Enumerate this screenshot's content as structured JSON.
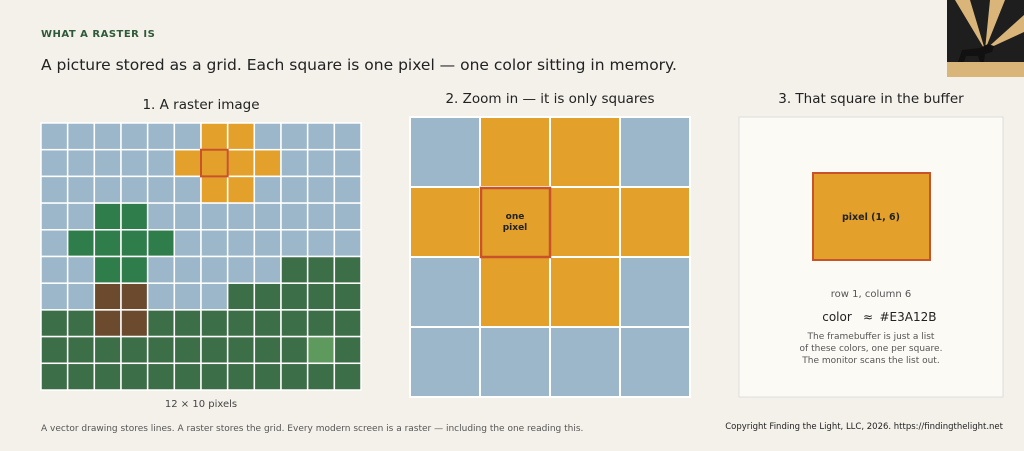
{
  "header": {
    "label": "WHAT A RASTER IS",
    "title": "A picture stored as a grid. Each square is one pixel — one color sitting in memory."
  },
  "panels": [
    {
      "title": "1.  A raster image",
      "caption": "12 × 10 pixels"
    },
    {
      "title": "2.  Zoom in — it is only squares",
      "cell_label": [
        "one",
        "pixel"
      ]
    },
    {
      "title": "3.  That square in the buffer",
      "pixel_label": "pixel (1, 6)",
      "position": "row 1, column 6",
      "color_label": "color",
      "color_approx": "≈",
      "color_value": "#E3A12B",
      "note": [
        "The framebuffer is just a list",
        "of these colors, one per square.",
        "The monitor scans the list out."
      ]
    }
  ],
  "footer": {
    "note": "A vector drawing stores lines. A raster stores the grid. Every modern screen is a raster — including the one reading this.",
    "copyright": "Copyright Finding the Light, LLC, 2026. https://findingthelight.net"
  }
}
